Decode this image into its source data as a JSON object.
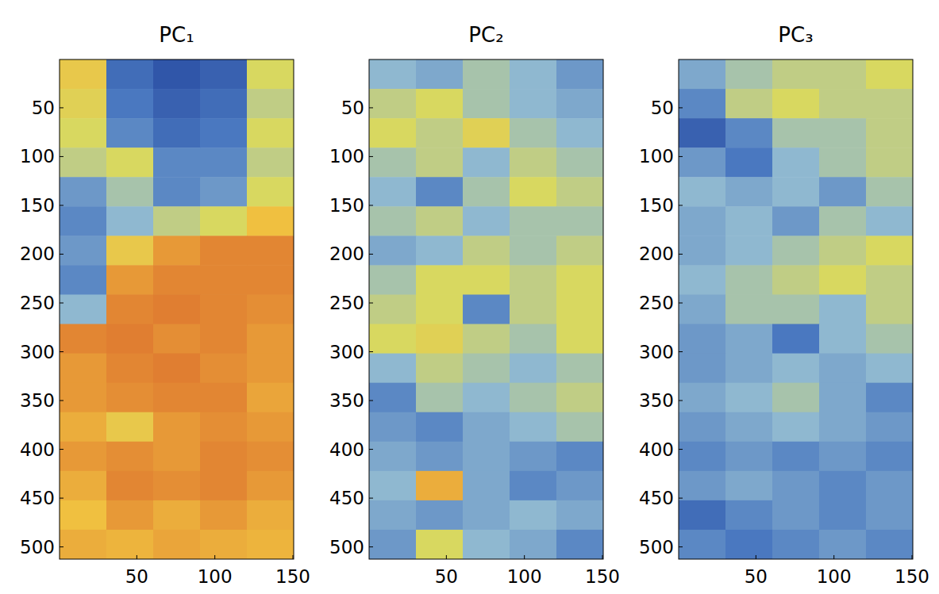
{
  "chart_data": [
    {
      "type": "heatmap",
      "title": "PC₁",
      "xlim": [
        0.5,
        150.5
      ],
      "ylim": [
        0.5,
        512.5
      ],
      "xticks": [
        50,
        100,
        150
      ],
      "yticks": [
        50,
        100,
        150,
        200,
        250,
        300,
        350,
        400,
        450,
        500
      ],
      "cells": [
        [
          0.7,
          0.2,
          0.1,
          0.15,
          0.6
        ],
        [
          0.65,
          0.25,
          0.15,
          0.2,
          0.55
        ],
        [
          0.6,
          0.3,
          0.2,
          0.25,
          0.6
        ],
        [
          0.55,
          0.6,
          0.3,
          0.3,
          0.55
        ],
        [
          0.35,
          0.5,
          0.3,
          0.35,
          0.6
        ],
        [
          0.3,
          0.45,
          0.55,
          0.6,
          0.75
        ],
        [
          0.35,
          0.7,
          0.85,
          0.9,
          0.9
        ],
        [
          0.3,
          0.85,
          0.9,
          0.9,
          0.9
        ],
        [
          0.45,
          0.9,
          0.92,
          0.9,
          0.88
        ],
        [
          0.9,
          0.92,
          0.88,
          0.9,
          0.85
        ],
        [
          0.85,
          0.9,
          0.92,
          0.88,
          0.85
        ],
        [
          0.85,
          0.88,
          0.9,
          0.9,
          0.82
        ],
        [
          0.8,
          0.7,
          0.85,
          0.88,
          0.85
        ],
        [
          0.85,
          0.88,
          0.85,
          0.9,
          0.88
        ],
        [
          0.8,
          0.9,
          0.88,
          0.9,
          0.85
        ],
        [
          0.75,
          0.85,
          0.8,
          0.85,
          0.8
        ],
        [
          0.8,
          0.78,
          0.82,
          0.8,
          0.78
        ]
      ]
    },
    {
      "type": "heatmap",
      "title": "PC₂",
      "xlim": [
        0.5,
        150.5
      ],
      "ylim": [
        0.5,
        512.5
      ],
      "xticks": [
        50,
        100,
        150
      ],
      "yticks": [
        50,
        100,
        150,
        200,
        250,
        300,
        350,
        400,
        450,
        500
      ],
      "cells": [
        [
          0.45,
          0.4,
          0.5,
          0.45,
          0.35
        ],
        [
          0.55,
          0.6,
          0.5,
          0.45,
          0.4
        ],
        [
          0.6,
          0.55,
          0.65,
          0.5,
          0.45
        ],
        [
          0.5,
          0.55,
          0.45,
          0.55,
          0.5
        ],
        [
          0.45,
          0.3,
          0.5,
          0.6,
          0.55
        ],
        [
          0.5,
          0.55,
          0.45,
          0.5,
          0.5
        ],
        [
          0.4,
          0.45,
          0.55,
          0.5,
          0.55
        ],
        [
          0.5,
          0.6,
          0.6,
          0.55,
          0.6
        ],
        [
          0.55,
          0.6,
          0.3,
          0.55,
          0.6
        ],
        [
          0.6,
          0.65,
          0.55,
          0.5,
          0.6
        ],
        [
          0.45,
          0.55,
          0.5,
          0.45,
          0.5
        ],
        [
          0.3,
          0.5,
          0.45,
          0.5,
          0.55
        ],
        [
          0.35,
          0.3,
          0.4,
          0.45,
          0.5
        ],
        [
          0.4,
          0.35,
          0.4,
          0.35,
          0.3
        ],
        [
          0.45,
          0.8,
          0.4,
          0.3,
          0.35
        ],
        [
          0.4,
          0.35,
          0.4,
          0.45,
          0.4
        ],
        [
          0.35,
          0.6,
          0.45,
          0.4,
          0.3
        ]
      ]
    },
    {
      "type": "heatmap",
      "title": "PC₃",
      "xlim": [
        0.5,
        150.5
      ],
      "ylim": [
        0.5,
        512.5
      ],
      "xticks": [
        50,
        100,
        150
      ],
      "yticks": [
        50,
        100,
        150,
        200,
        250,
        300,
        350,
        400,
        450,
        500
      ],
      "cells": [
        [
          0.4,
          0.5,
          0.55,
          0.55,
          0.6
        ],
        [
          0.3,
          0.55,
          0.6,
          0.55,
          0.55
        ],
        [
          0.15,
          0.3,
          0.5,
          0.5,
          0.55
        ],
        [
          0.35,
          0.25,
          0.45,
          0.5,
          0.55
        ],
        [
          0.45,
          0.4,
          0.45,
          0.35,
          0.5
        ],
        [
          0.4,
          0.45,
          0.35,
          0.5,
          0.45
        ],
        [
          0.4,
          0.45,
          0.5,
          0.55,
          0.6
        ],
        [
          0.45,
          0.5,
          0.55,
          0.6,
          0.55
        ],
        [
          0.4,
          0.5,
          0.5,
          0.45,
          0.55
        ],
        [
          0.35,
          0.4,
          0.25,
          0.45,
          0.5
        ],
        [
          0.35,
          0.4,
          0.45,
          0.4,
          0.45
        ],
        [
          0.4,
          0.45,
          0.5,
          0.4,
          0.3
        ],
        [
          0.35,
          0.4,
          0.45,
          0.4,
          0.35
        ],
        [
          0.3,
          0.35,
          0.3,
          0.35,
          0.3
        ],
        [
          0.35,
          0.4,
          0.35,
          0.3,
          0.35
        ],
        [
          0.2,
          0.3,
          0.35,
          0.3,
          0.35
        ],
        [
          0.3,
          0.25,
          0.3,
          0.35,
          0.3
        ]
      ]
    }
  ]
}
